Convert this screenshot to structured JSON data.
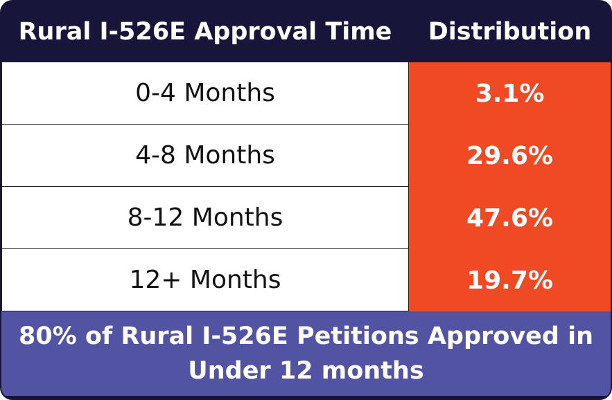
{
  "header": {
    "columns": [
      "Rural I-526E Approval Time",
      "Distribution"
    ]
  },
  "table": {
    "rows": [
      [
        "0-4 Months",
        "3.1%"
      ],
      [
        "4-8 Months",
        "29.6%"
      ],
      [
        "8-12 Months",
        "47.6%"
      ],
      [
        "12+ Months",
        "19.7%"
      ]
    ]
  },
  "footer": {
    "text": "80% of Rural I-526E Petitions Approved in Under 12 months"
  }
}
